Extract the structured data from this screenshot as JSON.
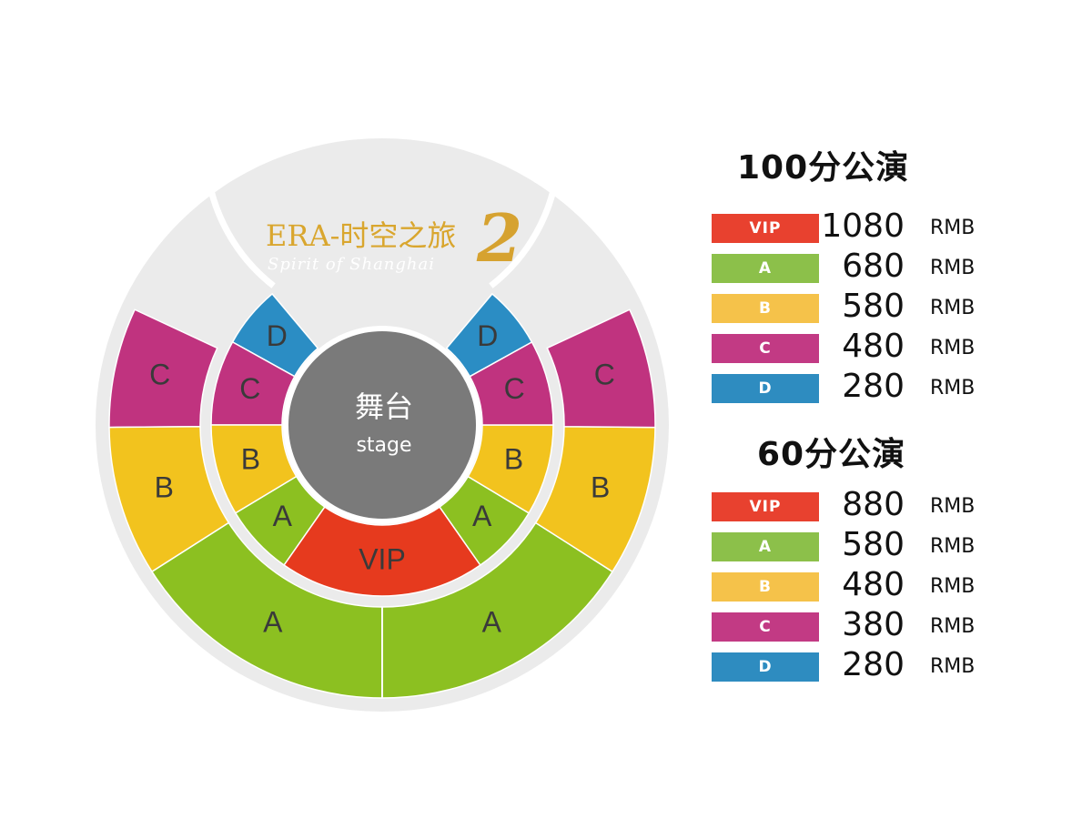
{
  "logo": {
    "title": "ERA-时空之旅",
    "subtitle": "Spirit of Shanghai",
    "number": "2"
  },
  "stage": {
    "label_cn": "舞台",
    "label_en": "stage"
  },
  "colors": {
    "VIP": "#e63a1e",
    "A": "#8cc021",
    "B": "#f2c31e",
    "C": "#c0337f",
    "D": "#2b8dc4",
    "background": "#ebebeb",
    "stage": "#7a7a7a"
  },
  "sections": {
    "outer": [
      "C",
      "B",
      "A",
      "A",
      "B",
      "C"
    ],
    "inner": [
      "D",
      "C",
      "B",
      "A",
      "VIP",
      "A",
      "B",
      "C",
      "D"
    ]
  },
  "pricing": [
    {
      "title": "100分公演",
      "rows": [
        {
          "tier": "VIP",
          "price": "1080",
          "unit": "RMB"
        },
        {
          "tier": "A",
          "price": "680",
          "unit": "RMB"
        },
        {
          "tier": "B",
          "price": "580",
          "unit": "RMB"
        },
        {
          "tier": "C",
          "price": "480",
          "unit": "RMB"
        },
        {
          "tier": "D",
          "price": "280",
          "unit": "RMB"
        }
      ]
    },
    {
      "title": "60分公演",
      "rows": [
        {
          "tier": "VIP",
          "price": "880",
          "unit": "RMB"
        },
        {
          "tier": "A",
          "price": "580",
          "unit": "RMB"
        },
        {
          "tier": "B",
          "price": "480",
          "unit": "RMB"
        },
        {
          "tier": "C",
          "price": "380",
          "unit": "RMB"
        },
        {
          "tier": "D",
          "price": "280",
          "unit": "RMB"
        }
      ]
    }
  ],
  "tag_colors": {
    "VIP": "#e8412f",
    "A": "#8cc04a",
    "B": "#f5c24a",
    "C": "#c23a84",
    "D": "#2e8cc0"
  }
}
